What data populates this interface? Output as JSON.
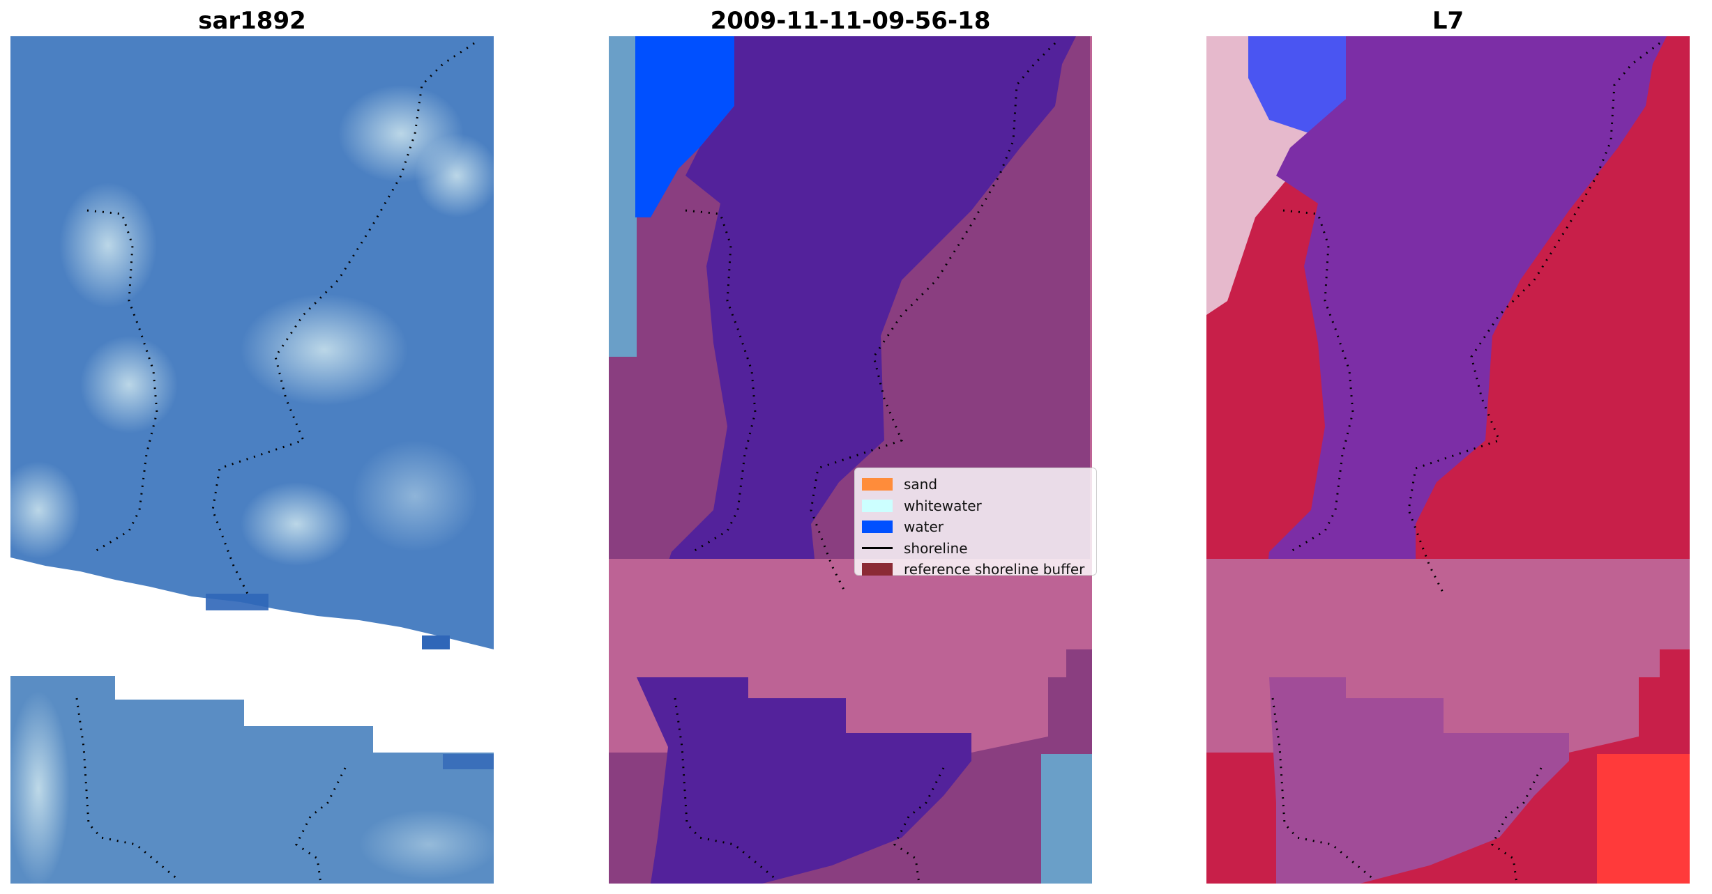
{
  "panels": [
    {
      "title": "sar1892"
    },
    {
      "title": "2009-11-11-09-56-18"
    },
    {
      "title": "L7"
    }
  ],
  "legend": {
    "items": [
      {
        "label": "sand",
        "color": "#ff8c3a"
      },
      {
        "label": "whitewater",
        "color": "#ccffff"
      },
      {
        "label": "water",
        "color": "#0050ff"
      },
      {
        "label": "shoreline",
        "color": "#000000"
      },
      {
        "label": "reference shoreline buffer",
        "color": "#8b2a35"
      }
    ]
  },
  "colors": {
    "sar_base": "#4a7fc1",
    "sar_bright": "#b7d8e8",
    "classified_water": "#52229a",
    "classified_buffer": "#bd6395",
    "classified_land": "#8a3e80",
    "l7_land": "#c81f49",
    "l7_water": "#7a2da8",
    "l7_buffer": "#bf6293"
  }
}
